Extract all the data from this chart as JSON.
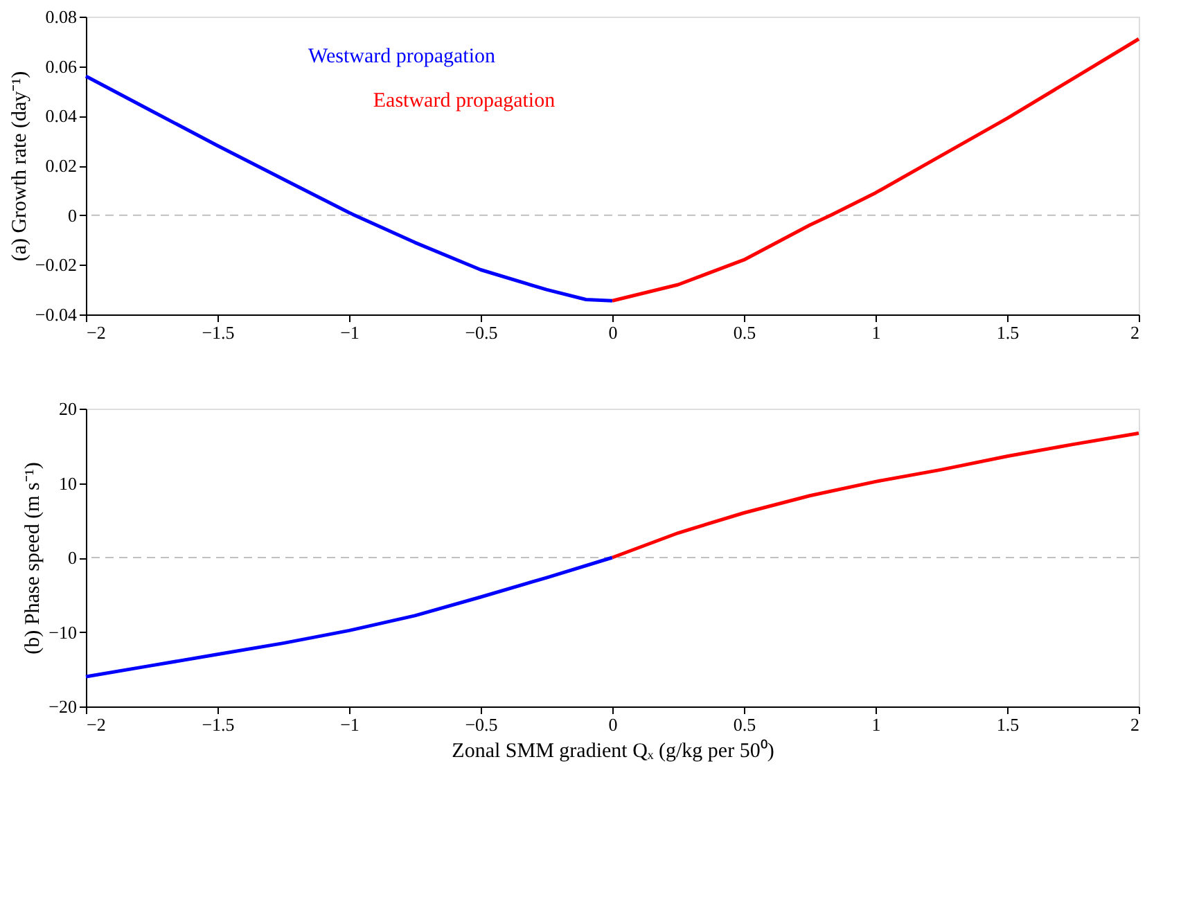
{
  "chart_data": [
    {
      "type": "line",
      "ylabel": "(a) Growth rate (day⁻¹)",
      "xlim": [
        -2,
        2
      ],
      "xticks": [
        -2,
        -1.5,
        -1,
        -0.5,
        0,
        0.5,
        1,
        1.5,
        2
      ],
      "ylim": [
        -0.04,
        0.08
      ],
      "yticks": [
        -0.04,
        -0.02,
        0,
        0.02,
        0.04,
        0.06,
        0.08
      ],
      "grid": false,
      "legend": "top",
      "marker": "none",
      "line_style": "solid",
      "ref_lines": [
        {
          "axis": "y",
          "value": 0,
          "color": "#c0c0c0",
          "line_style": "dashed"
        }
      ],
      "series": [
        {
          "name": "Westward propagation",
          "color": "#0000ff",
          "x": [
            -2,
            -1.75,
            -1.5,
            -1.25,
            -1,
            -0.75,
            -0.5,
            -0.25,
            -0.1,
            0
          ],
          "values": [
            0.056,
            0.042,
            0.028,
            0.0145,
            0.001,
            -0.011,
            -0.022,
            -0.03,
            -0.034,
            -0.0345
          ]
        },
        {
          "name": "Eastward propagation",
          "color": "#ff0000",
          "x": [
            0,
            0.25,
            0.5,
            0.75,
            0.83,
            1,
            1.25,
            1.5,
            1.75,
            2
          ],
          "values": [
            -0.0345,
            -0.028,
            -0.018,
            -0.004,
            0,
            0.009,
            0.024,
            0.039,
            0.055,
            0.071
          ]
        }
      ]
    },
    {
      "type": "line",
      "ylabel": "(b) Phase speed (m s⁻¹)",
      "xlabel": "Zonal SMM gradient Qₓ (g/kg per 50⁰)",
      "xlim": [
        -2,
        2
      ],
      "xticks": [
        -2,
        -1.5,
        -1,
        -0.5,
        0,
        0.5,
        1,
        1.5,
        2
      ],
      "ylim": [
        -20,
        20
      ],
      "yticks": [
        -20,
        -10,
        0,
        10,
        20
      ],
      "grid": false,
      "marker": "none",
      "line_style": "solid",
      "ref_lines": [
        {
          "axis": "y",
          "value": 0,
          "color": "#c0c0c0",
          "line_style": "dashed"
        }
      ],
      "series": [
        {
          "color": "#0000ff",
          "x": [
            -2,
            -1.75,
            -1.5,
            -1.25,
            -1,
            -0.75,
            -0.5,
            -0.25,
            0
          ],
          "values": [
            -16,
            -14.5,
            -13,
            -11.5,
            -9.8,
            -7.8,
            -5.3,
            -2.7,
            0
          ]
        },
        {
          "color": "#ff0000",
          "x": [
            0,
            0.25,
            0.5,
            0.75,
            1,
            1.25,
            1.5,
            1.75,
            2
          ],
          "values": [
            0,
            3.3,
            6,
            8.3,
            10.2,
            11.8,
            13.6,
            15.2,
            16.7
          ]
        }
      ]
    }
  ]
}
